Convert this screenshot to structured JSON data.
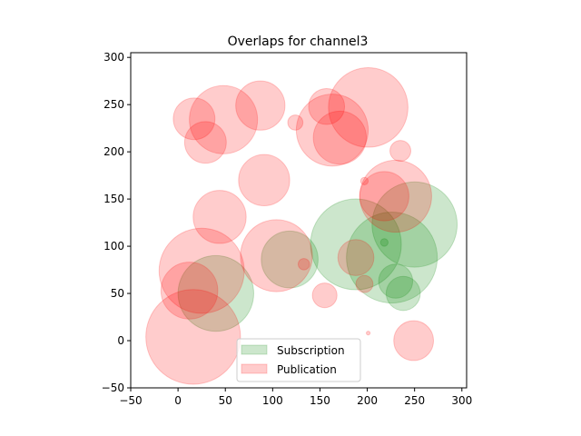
{
  "chart_data": {
    "type": "scatter",
    "title": "Overlaps for channel3",
    "xlabel": "",
    "ylabel": "",
    "xlim": [
      -50,
      305
    ],
    "ylim": [
      -50,
      305
    ],
    "xticks": [
      -50,
      0,
      50,
      100,
      150,
      200,
      250,
      300
    ],
    "yticks": [
      -50,
      0,
      50,
      100,
      150,
      200,
      250,
      300
    ],
    "grid": false,
    "legend_position": "bottom-center",
    "marker": "circle",
    "series": [
      {
        "name": "Subscription",
        "color": "#008000",
        "alpha": 0.2,
        "points": [
          {
            "x": 40,
            "y": 50,
            "r": 40
          },
          {
            "x": 118,
            "y": 86,
            "r": 30
          },
          {
            "x": 188,
            "y": 102,
            "r": 48
          },
          {
            "x": 226,
            "y": 88,
            "r": 48
          },
          {
            "x": 250,
            "y": 123,
            "r": 45
          },
          {
            "x": 238,
            "y": 50,
            "r": 18
          },
          {
            "x": 230,
            "y": 63,
            "r": 18
          },
          {
            "x": 218,
            "y": 104,
            "r": 4
          }
        ]
      },
      {
        "name": "Publication",
        "color": "#ff0000",
        "alpha": 0.2,
        "points": [
          {
            "x": 16,
            "y": 4,
            "r": 50
          },
          {
            "x": 25,
            "y": 74,
            "r": 45
          },
          {
            "x": 12,
            "y": 53,
            "r": 30
          },
          {
            "x": 44,
            "y": 131,
            "r": 28
          },
          {
            "x": 48,
            "y": 234,
            "r": 36
          },
          {
            "x": 17,
            "y": 235,
            "r": 22
          },
          {
            "x": 29,
            "y": 210,
            "r": 22
          },
          {
            "x": 87,
            "y": 249,
            "r": 26
          },
          {
            "x": 91,
            "y": 170,
            "r": 27
          },
          {
            "x": 104,
            "y": 90,
            "r": 38
          },
          {
            "x": 124,
            "y": 231,
            "r": 8
          },
          {
            "x": 133,
            "y": 81,
            "r": 6
          },
          {
            "x": 155,
            "y": 48,
            "r": 13
          },
          {
            "x": 157,
            "y": 248,
            "r": 19
          },
          {
            "x": 163,
            "y": 223,
            "r": 38
          },
          {
            "x": 171,
            "y": 215,
            "r": 28
          },
          {
            "x": 201,
            "y": 247,
            "r": 42
          },
          {
            "x": 188,
            "y": 88,
            "r": 19
          },
          {
            "x": 197,
            "y": 60,
            "r": 9
          },
          {
            "x": 197,
            "y": 169,
            "r": 4
          },
          {
            "x": 201,
            "y": 8,
            "r": 2
          },
          {
            "x": 218,
            "y": 153,
            "r": 26
          },
          {
            "x": 230,
            "y": 153,
            "r": 38
          },
          {
            "x": 235,
            "y": 201,
            "r": 11
          },
          {
            "x": 249,
            "y": 0,
            "r": 21
          }
        ]
      }
    ]
  }
}
